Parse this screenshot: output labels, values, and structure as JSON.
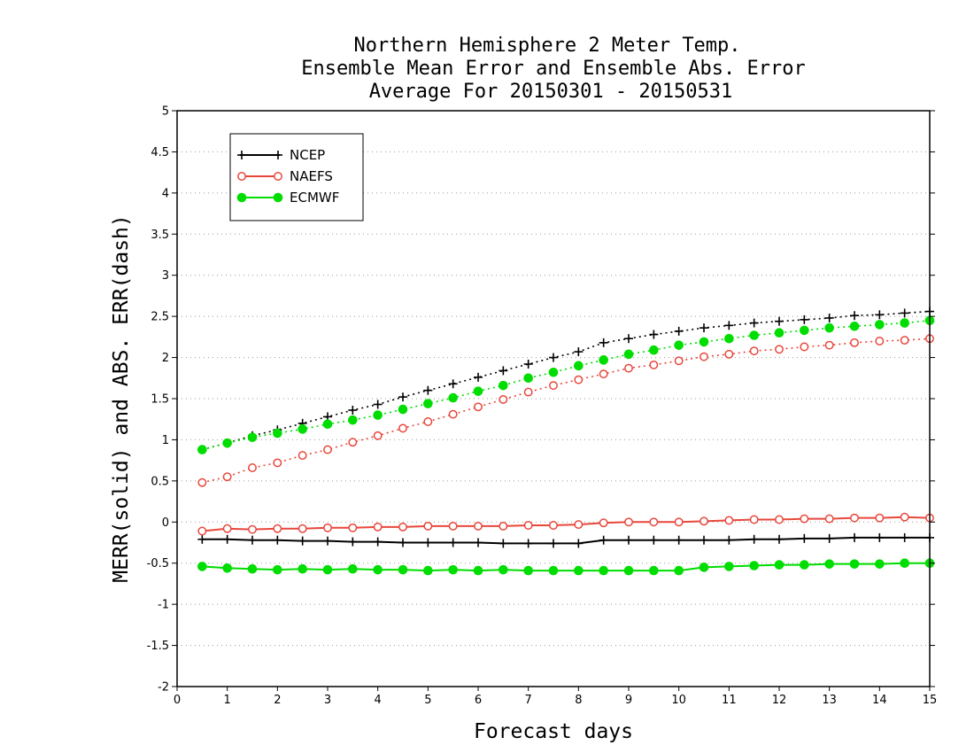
{
  "chart_data": {
    "type": "line",
    "title": [
      "Northern Hemisphere 2 Meter Temp.",
      "Ensemble Mean Error and Ensemble Abs. Error",
      "Average For 20150301 - 20150531"
    ],
    "xlabel": "Forecast days",
    "ylabel": "MERR(solid) and ABS. ERR(dash)",
    "xlim": [
      0,
      15
    ],
    "ylim": [
      -2,
      5
    ],
    "xticks": [
      "0",
      "1",
      "2",
      "3",
      "4",
      "5",
      "6",
      "7",
      "8",
      "9",
      "10",
      "11",
      "12",
      "13",
      "14",
      "15"
    ],
    "yticks": [
      "-2",
      "-1.5",
      "-1",
      "-0.5",
      "0",
      "0.5",
      "1",
      "1.5",
      "2",
      "2.5",
      "3",
      "3.5",
      "4",
      "4.5",
      "5"
    ],
    "grid": "horizontal dotted",
    "legend_position": "top-left",
    "x": [
      0.5,
      1,
      1.5,
      2,
      2.5,
      3,
      3.5,
      4,
      4.5,
      5,
      5.5,
      6,
      6.5,
      7,
      7.5,
      8,
      8.5,
      9,
      9.5,
      10,
      10.5,
      11,
      11.5,
      12,
      12.5,
      13,
      13.5,
      14,
      14.5,
      15
    ],
    "series": [
      {
        "name": "NCEP",
        "color": "#000000",
        "marker": "plus",
        "abs_err": [
          0.88,
          0.96,
          1.05,
          1.12,
          1.2,
          1.28,
          1.36,
          1.43,
          1.52,
          1.6,
          1.68,
          1.76,
          1.84,
          1.92,
          2.0,
          2.07,
          2.18,
          2.23,
          2.28,
          2.32,
          2.36,
          2.39,
          2.42,
          2.44,
          2.46,
          2.48,
          2.51,
          2.52,
          2.54,
          2.56
        ],
        "mean_err": [
          -0.21,
          -0.21,
          -0.22,
          -0.22,
          -0.23,
          -0.23,
          -0.24,
          -0.24,
          -0.25,
          -0.25,
          -0.25,
          -0.25,
          -0.26,
          -0.26,
          -0.26,
          -0.26,
          -0.22,
          -0.22,
          -0.22,
          -0.22,
          -0.22,
          -0.22,
          -0.21,
          -0.21,
          -0.2,
          -0.2,
          -0.19,
          -0.19,
          -0.19,
          -0.19
        ]
      },
      {
        "name": "NAEFS",
        "color": "#e8473c",
        "marker": "open-circle",
        "abs_err": [
          0.48,
          0.55,
          0.66,
          0.72,
          0.81,
          0.88,
          0.97,
          1.05,
          1.14,
          1.22,
          1.31,
          1.4,
          1.49,
          1.58,
          1.66,
          1.73,
          1.8,
          1.87,
          1.91,
          1.96,
          2.01,
          2.04,
          2.08,
          2.1,
          2.13,
          2.15,
          2.18,
          2.2,
          2.21,
          2.23
        ],
        "mean_err": [
          -0.11,
          -0.08,
          -0.09,
          -0.08,
          -0.08,
          -0.07,
          -0.07,
          -0.06,
          -0.06,
          -0.05,
          -0.05,
          -0.05,
          -0.05,
          -0.04,
          -0.04,
          -0.03,
          -0.01,
          0.0,
          0.0,
          0.0,
          0.01,
          0.02,
          0.03,
          0.03,
          0.04,
          0.04,
          0.05,
          0.05,
          0.06,
          0.05
        ]
      },
      {
        "name": "ECMWF",
        "color": "#00dd00",
        "marker": "filled-circle",
        "abs_err": [
          0.88,
          0.96,
          1.03,
          1.08,
          1.13,
          1.19,
          1.24,
          1.3,
          1.37,
          1.44,
          1.51,
          1.59,
          1.66,
          1.75,
          1.82,
          1.9,
          1.97,
          2.04,
          2.09,
          2.15,
          2.19,
          2.23,
          2.27,
          2.3,
          2.33,
          2.36,
          2.38,
          2.4,
          2.42,
          2.45
        ],
        "mean_err": [
          -0.54,
          -0.56,
          -0.57,
          -0.58,
          -0.57,
          -0.58,
          -0.57,
          -0.58,
          -0.58,
          -0.59,
          -0.58,
          -0.59,
          -0.58,
          -0.59,
          -0.59,
          -0.59,
          -0.59,
          -0.59,
          -0.59,
          -0.59,
          -0.55,
          -0.54,
          -0.53,
          -0.52,
          -0.52,
          -0.51,
          -0.51,
          -0.51,
          -0.5,
          -0.5
        ]
      }
    ]
  }
}
